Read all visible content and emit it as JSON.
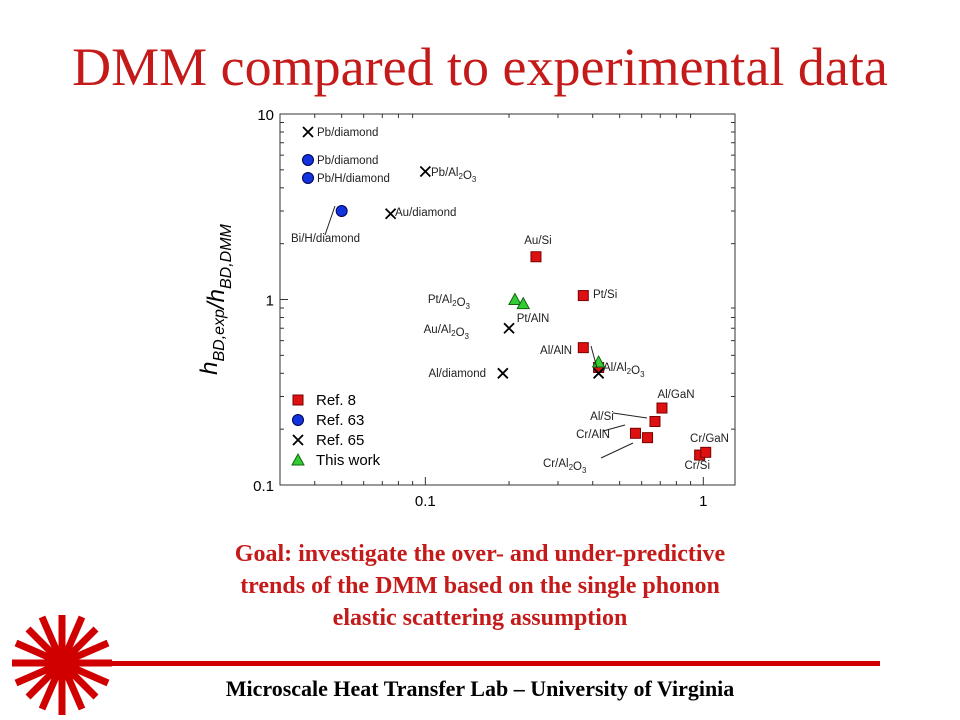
{
  "slide": {
    "title": "DMM compared to experimental data",
    "goal_lines": [
      "Goal: investigate the over- and under-predictive",
      "trends of the DMM based on the single phonon",
      "elastic scattering assumption"
    ],
    "footer": "Microscale Heat Transfer Lab – University of Virginia"
  },
  "chart_data": {
    "type": "scatter",
    "xscale": "log",
    "yscale": "log",
    "xlim": [
      0.03,
      1.3
    ],
    "ylim": [
      0.1,
      10
    ],
    "ylabel": "h_BD,exp / h_BD,DMM",
    "x_ticks": [
      {
        "value": 0.1,
        "label": "0.1"
      },
      {
        "value": 1,
        "label": "1"
      }
    ],
    "y_ticks": [
      {
        "value": 0.1,
        "label": "0.1"
      },
      {
        "value": 1,
        "label": "1"
      },
      {
        "value": 10,
        "label": "10"
      }
    ],
    "legend_position": "bottom-left",
    "series": [
      {
        "name": "Ref. 8",
        "marker": "square",
        "color": "#dd1111",
        "points": [
          {
            "x": 0.25,
            "y": 1.7
          },
          {
            "x": 0.37,
            "y": 1.05
          },
          {
            "x": 0.37,
            "y": 0.55
          },
          {
            "x": 0.42,
            "y": 0.43
          },
          {
            "x": 0.71,
            "y": 0.26
          },
          {
            "x": 0.67,
            "y": 0.22
          },
          {
            "x": 0.63,
            "y": 0.18
          },
          {
            "x": 0.57,
            "y": 0.19
          },
          {
            "x": 0.97,
            "y": 0.145
          },
          {
            "x": 1.02,
            "y": 0.15
          }
        ]
      },
      {
        "name": "Ref. 63",
        "marker": "circle",
        "color": "#1133dd",
        "points": [
          {
            "x": 0.05,
            "y": 3.0
          }
        ]
      },
      {
        "name": "Ref. 65",
        "marker": "x",
        "color": "#000000",
        "points": [
          {
            "x": 0.1,
            "y": 4.9
          },
          {
            "x": 0.075,
            "y": 2.9
          },
          {
            "x": 0.2,
            "y": 0.7
          },
          {
            "x": 0.19,
            "y": 0.4
          },
          {
            "x": 0.42,
            "y": 0.4
          }
        ]
      },
      {
        "name": "This work",
        "marker": "triangle",
        "color": "#33cc33",
        "points": [
          {
            "x": 0.21,
            "y": 1.0
          },
          {
            "x": 0.225,
            "y": 0.95
          },
          {
            "x": 0.42,
            "y": 0.46
          }
        ]
      }
    ],
    "legend_markers_shown_without_points": [
      {
        "marker": "x",
        "label": "Pb/diamond"
      },
      {
        "marker": "circle",
        "label": "Pb/diamond"
      },
      {
        "marker": "circle",
        "label": "Pb/H/diamond"
      }
    ],
    "annotations": [
      {
        "text": "Pb/diamond"
      },
      {
        "text": "Pb/diamond"
      },
      {
        "text": "Pb/H/diamond"
      },
      {
        "text": "Pb/Al2O3"
      },
      {
        "text": "Au/diamond"
      },
      {
        "text": "Bi/H/diamond"
      },
      {
        "text": "Au/Si"
      },
      {
        "text": "Pt/Al2O3"
      },
      {
        "text": "Pt/Si"
      },
      {
        "text": "Pt/AlN"
      },
      {
        "text": "Au/Al2O3"
      },
      {
        "text": "Al/AlN"
      },
      {
        "text": "Al/Al2O3"
      },
      {
        "text": "Al/diamond"
      },
      {
        "text": "Al/GaN"
      },
      {
        "text": "Al/Si"
      },
      {
        "text": "Cr/AlN"
      },
      {
        "text": "Cr/GaN"
      },
      {
        "text": "Cr/Al2O3"
      },
      {
        "text": "Cr/Si"
      }
    ]
  }
}
